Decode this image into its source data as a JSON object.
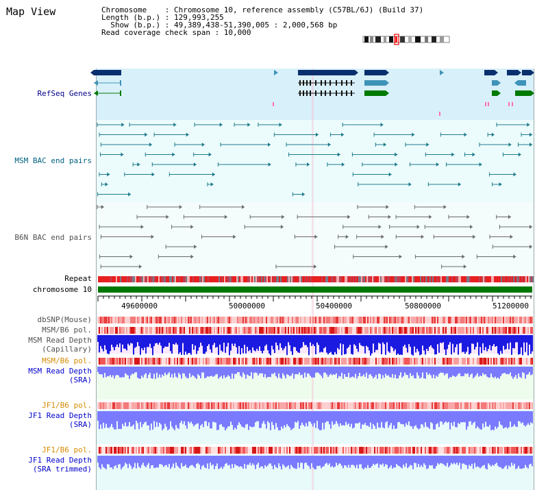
{
  "page": {
    "title": "Map View"
  },
  "info": {
    "line1": "Chromosome    : Chromosome 10, reference assembly (C57BL/6J) (Build 37)",
    "line2": "Length (b.p.) : 129,993,255",
    "line3": "  Show (b.p.) : 49,389,438-51,390,005 : 2,000,568 bp",
    "line4": "Read coverage check span : 10,000"
  },
  "tracks": {
    "refseq": "RefSeq Genes",
    "msm_bac": "MSM BAC end pairs",
    "b6n_bac": "B6N BAC end pairs",
    "repeat": "Repeat",
    "chromosome": "chromosome 10",
    "dbsnp": "dbSNP(Mouse)",
    "msm_pol1": "MSM/B6 pol.",
    "msm_depth_cap_1": "MSM Read Depth",
    "msm_depth_cap_2": "(Capillary)",
    "msm_pol2": "MSM/B6 pol.",
    "msm_depth_sra_1": "MSM Read Depth",
    "msm_depth_sra_2": "(SRA)",
    "jf1_pol1": "JF1/B6 pol.",
    "jf1_depth_1": "JF1 Read Depth",
    "jf1_depth_2": "(SRA)",
    "jf1_pol2": "JF1/B6 pol.",
    "jf1_trim_1": "JF1 Read Depth",
    "jf1_trim_2": "(SRA trimmed)"
  },
  "axis": {
    "ticks": [
      "49600000",
      "50000000",
      "50400000",
      "50800000",
      "51200000"
    ]
  },
  "colors": {
    "refseq_bg": "#d8f0fa",
    "bac_bg": "#ecfcfc",
    "gene_dark": "#0a2f6e",
    "gene_mid": "#3f93b8",
    "gene_green": "#007a00",
    "bac_teal": "#1e7a8c",
    "bac_gray": "#6a6a6a",
    "chrom_green": "#007700",
    "snp_red": "#e83030",
    "depth_blue": "#1a1ae0",
    "depth_light": "#7a7aff"
  }
}
